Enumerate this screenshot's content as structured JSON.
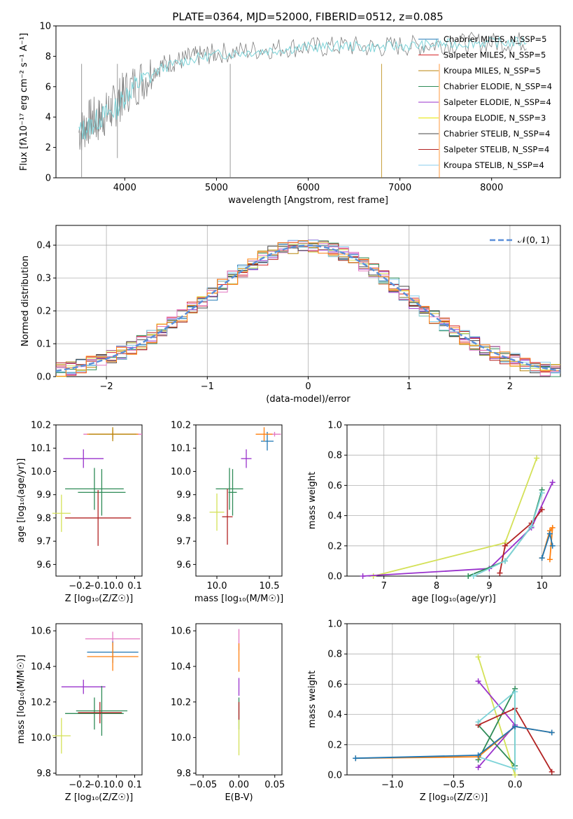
{
  "title": "PLATE=0364, MJD=52000, FIBERID=0512, z=0.085",
  "chart_data": [
    {
      "id": "spectrum",
      "type": "line",
      "xlabel": "wavelength [Angstrom, rest frame]",
      "ylabel": "Flux [fλ10⁻¹⁷ erg cm⁻² s⁻¹ A⁻¹]",
      "xlim": [
        3250,
        8750
      ],
      "ylim": [
        0,
        10
      ],
      "xticks": [
        4000,
        5000,
        6000,
        7000,
        8000
      ],
      "yticks": [
        0,
        2,
        4,
        6,
        8,
        10
      ],
      "grid": false,
      "legend_position": "upper-right",
      "legend": [
        {
          "label": "Chabrier MILES, N_SSP=5",
          "color": "#1f77b4"
        },
        {
          "label": "Salpeter MILES, N_SSP=5",
          "color": "#d62728"
        },
        {
          "label": "Kroupa MILES, N_SSP=5",
          "color": "#b8860b"
        },
        {
          "label": "Chabrier ELODIE, N_SSP=4",
          "color": "#2e8b57"
        },
        {
          "label": "Salpeter ELODIE, N_SSP=4",
          "color": "#9932cc"
        },
        {
          "label": "Kroupa ELODIE, N_SSP=3",
          "color": "#e6e600"
        },
        {
          "label": "Chabrier STELIB, N_SSP=4",
          "color": "#444444"
        },
        {
          "label": "Salpeter STELIB, N_SSP=4",
          "color": "#b22222"
        },
        {
          "label": "Kroupa STELIB, N_SSP=4",
          "color": "#87ceeb"
        }
      ],
      "data_series": {
        "name": "data",
        "color": "#808080",
        "x": [
          3500,
          3550,
          3600,
          3650,
          3700,
          3750,
          3800,
          3850,
          3900,
          3950,
          4000,
          4100,
          4200,
          4300,
          4400,
          4500,
          4600,
          4700,
          4800,
          4900,
          5000,
          5200,
          5400,
          5600,
          5800,
          6000,
          6200,
          6400,
          6600,
          6800,
          7000,
          7200,
          7400,
          7600,
          7800,
          8000,
          8200,
          8400
        ],
        "y": [
          3.0,
          3.2,
          3.6,
          3.9,
          3.7,
          4.1,
          4.2,
          4.5,
          4.8,
          5.2,
          5.6,
          6.1,
          6.5,
          7.0,
          7.4,
          7.6,
          7.7,
          7.9,
          8.0,
          8.1,
          8.2,
          8.3,
          8.4,
          8.5,
          8.6,
          8.6,
          8.6,
          8.7,
          8.6,
          8.6,
          8.7,
          8.7,
          8.8,
          8.8,
          8.9,
          8.9,
          8.9,
          9.0
        ]
      },
      "model_series": {
        "name": "model",
        "color": "#7dd3d8",
        "x": [
          3500,
          3600,
          3700,
          3800,
          3900,
          4000,
          4100,
          4200,
          4400,
          4600,
          4800,
          5000,
          5200,
          5400,
          5600,
          5800,
          6000,
          6200,
          6400,
          6600,
          6800,
          7000,
          7200,
          7400,
          7600,
          7800,
          8000,
          8200,
          8400
        ],
        "y": [
          3.0,
          3.3,
          3.8,
          4.2,
          4.5,
          5.4,
          6.0,
          6.4,
          7.2,
          7.6,
          7.9,
          8.1,
          8.2,
          8.3,
          8.4,
          8.5,
          8.6,
          8.6,
          8.7,
          8.6,
          8.6,
          8.7,
          8.7,
          8.8,
          8.8,
          8.9,
          8.9,
          8.9,
          9.0
        ]
      }
    },
    {
      "id": "residuals",
      "type": "line",
      "xlabel": "(data-model)/error",
      "ylabel": "Normed distribution",
      "xlim": [
        -2.5,
        2.5
      ],
      "ylim": [
        0,
        0.46
      ],
      "xticks": [
        -2,
        -1,
        0,
        1,
        2
      ],
      "yticks": [
        0.0,
        0.1,
        0.2,
        0.3,
        0.4
      ],
      "grid": true,
      "legend_position": "upper-right",
      "legend_label": "𝒩(0, 1)",
      "gaussian": {
        "mu": 0,
        "sigma": 1,
        "color": "#5b8fd9"
      },
      "step_colors": [
        "#1f77b4",
        "#d62728",
        "#b8860b",
        "#2e8b57",
        "#9932cc",
        "#d4e157",
        "#444444",
        "#b22222",
        "#87ceeb",
        "#e377c2",
        "#ff7f0e"
      ]
    },
    {
      "id": "age-vs-Z",
      "type": "scatter",
      "xlabel": "Z [log₁₀(Z/Z☉)]",
      "ylabel": "age  [log₁₀(age/yr)]",
      "xlim": [
        -0.33,
        0.14
      ],
      "ylim": [
        9.55,
        10.2
      ],
      "xticks": [
        -0.2,
        -0.1,
        0.0,
        0.1
      ],
      "ytick_labels": [
        "9.6",
        "9.7",
        "9.8",
        "9.9",
        "10.0",
        "10.1",
        "10.2"
      ],
      "points": [
        {
          "x": -0.02,
          "y": 10.16,
          "xerr": 0.16,
          "yerr": 0.01,
          "color": "#e377c2"
        },
        {
          "x": -0.02,
          "y": 10.16,
          "xerr": 0.14,
          "yerr": 0.02,
          "color": "#ff7f0e"
        },
        {
          "x": -0.02,
          "y": 10.16,
          "xerr": 0.13,
          "yerr": 0.03,
          "color": "#b8860b"
        },
        {
          "x": -0.18,
          "y": 10.055,
          "xerr": 0.11,
          "yerr": 0.04,
          "color": "#9932cc"
        },
        {
          "x": -0.12,
          "y": 9.925,
          "xerr": 0.16,
          "yerr": 0.09,
          "color": "#2e8b57"
        },
        {
          "x": -0.08,
          "y": 9.91,
          "xerr": 0.13,
          "yerr": 0.1,
          "color": "#2e8b57"
        },
        {
          "x": -0.1,
          "y": 9.8,
          "xerr": 0.18,
          "yerr": 0.12,
          "color": "#b22222"
        },
        {
          "x": -0.3,
          "y": 9.82,
          "xerr": 0.05,
          "yerr": 0.08,
          "color": "#d4e157"
        }
      ]
    },
    {
      "id": "age-vs-mass",
      "type": "scatter",
      "xlabel": "mass [log₁₀(M/M☉)]",
      "ylabel": "",
      "xlim": [
        9.8,
        10.62
      ],
      "ylim": [
        9.55,
        10.2
      ],
      "xticks": [
        10.0,
        10.5
      ],
      "ytick_labels": [
        "9.6",
        "9.7",
        "9.8",
        "9.9",
        "10.0",
        "10.1",
        "10.2"
      ],
      "points": [
        {
          "x": 10.55,
          "y": 10.16,
          "xerr": 0.06,
          "yerr": 0.01,
          "color": "#e377c2"
        },
        {
          "x": 10.48,
          "y": 10.13,
          "xerr": 0.06,
          "yerr": 0.04,
          "color": "#1f77b4"
        },
        {
          "x": 10.45,
          "y": 10.16,
          "xerr": 0.08,
          "yerr": 0.03,
          "color": "#ff7f0e"
        },
        {
          "x": 10.28,
          "y": 10.055,
          "xerr": 0.05,
          "yerr": 0.04,
          "color": "#9932cc"
        },
        {
          "x": 10.12,
          "y": 9.925,
          "xerr": 0.13,
          "yerr": 0.09,
          "color": "#2e8b57"
        },
        {
          "x": 10.15,
          "y": 9.91,
          "xerr": 0.04,
          "yerr": 0.1,
          "color": "#2e8b57"
        },
        {
          "x": 10.1,
          "y": 9.805,
          "xerr": 0.05,
          "yerr": 0.12,
          "color": "#b22222"
        },
        {
          "x": 10.0,
          "y": 9.825,
          "xerr": 0.07,
          "yerr": 0.08,
          "color": "#d4e157"
        }
      ]
    },
    {
      "id": "weight-vs-age",
      "type": "line",
      "xlabel": "age  [log₁₀(age/yr)]",
      "ylabel": "mass weight",
      "xlim": [
        6.3,
        10.35
      ],
      "ylim": [
        0,
        1.0
      ],
      "xticks": [
        7,
        8,
        9,
        10
      ],
      "ytick_labels": [
        "0.0",
        "0.2",
        "0.4",
        "0.6",
        "0.8",
        "1.0"
      ],
      "grid": true,
      "series": [
        {
          "color": "#d4e157",
          "x": [
            6.8,
            9.3,
            9.9
          ],
          "y": [
            0.0,
            0.22,
            0.78
          ]
        },
        {
          "color": "#9932cc",
          "x": [
            6.6,
            9.0,
            9.8,
            10.2
          ],
          "y": [
            0.0,
            0.05,
            0.32,
            0.62
          ]
        },
        {
          "color": "#2e8b57",
          "x": [
            8.6,
            9.3,
            9.8,
            10.0
          ],
          "y": [
            0.0,
            0.1,
            0.33,
            0.57
          ]
        },
        {
          "color": "#b22222",
          "x": [
            9.2,
            9.3,
            9.8,
            10.0
          ],
          "y": [
            0.02,
            0.2,
            0.35,
            0.44
          ]
        },
        {
          "color": "#7dd3d8",
          "x": [
            8.7,
            9.3,
            9.8,
            10.0
          ],
          "y": [
            0.0,
            0.1,
            0.33,
            0.55
          ]
        },
        {
          "color": "#ff7f0e",
          "x": [
            10.0,
            10.15,
            10.2,
            10.15
          ],
          "y": [
            0.12,
            0.3,
            0.32,
            0.11
          ]
        },
        {
          "color": "#1f77b4",
          "x": [
            10.0,
            10.15,
            10.2
          ],
          "y": [
            0.12,
            0.28,
            0.2
          ]
        }
      ]
    },
    {
      "id": "mass-vs-Z",
      "type": "scatter",
      "xlabel": "Z [log₁₀(Z/Z☉)]",
      "ylabel": "mass [log₁₀(M/M☉)]",
      "xlim": [
        -0.33,
        0.14
      ],
      "ylim": [
        9.79,
        10.64
      ],
      "xticks": [
        -0.2,
        -0.1,
        0.0,
        0.1
      ],
      "ytick_labels": [
        "9.8",
        "10.0",
        "10.2",
        "10.4",
        "10.6"
      ],
      "points": [
        {
          "x": -0.02,
          "y": 10.555,
          "xerr": 0.15,
          "yerr": 0.04,
          "color": "#e377c2"
        },
        {
          "x": -0.02,
          "y": 10.48,
          "xerr": 0.14,
          "yerr": 0.06,
          "color": "#1f77b4"
        },
        {
          "x": -0.02,
          "y": 10.455,
          "xerr": 0.14,
          "yerr": 0.08,
          "color": "#ff7f0e"
        },
        {
          "x": -0.18,
          "y": 10.285,
          "xerr": 0.12,
          "yerr": 0.04,
          "color": "#9932cc"
        },
        {
          "x": -0.12,
          "y": 10.135,
          "xerr": 0.16,
          "yerr": 0.09,
          "color": "#2e8b57"
        },
        {
          "x": -0.08,
          "y": 10.15,
          "xerr": 0.14,
          "yerr": 0.14,
          "color": "#2e8b57"
        },
        {
          "x": -0.09,
          "y": 10.14,
          "xerr": 0.12,
          "yerr": 0.06,
          "color": "#b22222"
        },
        {
          "x": -0.3,
          "y": 10.01,
          "xerr": 0.05,
          "yerr": 0.1,
          "color": "#d4e157"
        }
      ]
    },
    {
      "id": "mass-vs-EBV",
      "type": "scatter",
      "xlabel": "E(B-V)",
      "ylabel": "",
      "xlim": [
        -0.06,
        0.06
      ],
      "ylim": [
        9.79,
        10.64
      ],
      "xticks": [
        -0.05,
        0.0,
        0.05
      ],
      "ytick_labels": [
        "9.8",
        "10.0",
        "10.2",
        "10.4",
        "10.6"
      ],
      "points": [
        {
          "x": 0.0,
          "y": 10.55,
          "xerr": 0,
          "yerr": 0.06,
          "color": "#e377c2"
        },
        {
          "x": 0.0,
          "y": 10.45,
          "xerr": 0,
          "yerr": 0.08,
          "color": "#ff7f0e"
        },
        {
          "x": 0.0,
          "y": 10.285,
          "xerr": 0,
          "yerr": 0.05,
          "color": "#9932cc"
        },
        {
          "x": 0.0,
          "y": 10.135,
          "xerr": 0,
          "yerr": 0.09,
          "color": "#2e8b57"
        },
        {
          "x": 0.0,
          "y": 10.15,
          "xerr": 0,
          "yerr": 0.05,
          "color": "#b22222"
        },
        {
          "x": 0.0,
          "y": 10.0,
          "xerr": 0,
          "yerr": 0.1,
          "color": "#d4e157"
        }
      ]
    },
    {
      "id": "weight-vs-Z",
      "type": "line",
      "xlabel": "Z [log₁₀(Z/Z☉)]",
      "ylabel": "mass weight",
      "xlim": [
        -1.37,
        0.37
      ],
      "ylim": [
        0,
        1.0
      ],
      "xticks": [
        -1.0,
        -0.5,
        0.0
      ],
      "ytick_labels": [
        "0.0",
        "0.2",
        "0.4",
        "0.6",
        "0.8",
        "1.0"
      ],
      "grid": true,
      "series": [
        {
          "color": "#d4e157",
          "x": [
            -0.3,
            0.0
          ],
          "y": [
            0.78,
            0.0
          ]
        },
        {
          "color": "#9932cc",
          "x": [
            -0.3,
            0.0,
            -0.3
          ],
          "y": [
            0.62,
            0.33,
            0.05
          ]
        },
        {
          "color": "#2e8b57",
          "x": [
            -0.3,
            0.0,
            0.0,
            -0.3
          ],
          "y": [
            0.33,
            0.06,
            0.57,
            0.1
          ]
        },
        {
          "color": "#b22222",
          "x": [
            -0.3,
            0.0,
            0.3
          ],
          "y": [
            0.33,
            0.44,
            0.02
          ]
        },
        {
          "color": "#7dd3d8",
          "x": [
            -0.3,
            0.0,
            0.0,
            -0.3
          ],
          "y": [
            0.35,
            0.55,
            0.04,
            0.12
          ]
        },
        {
          "color": "#ff7f0e",
          "x": [
            -1.3,
            -0.3,
            0.0,
            0.3
          ],
          "y": [
            0.11,
            0.12,
            0.32,
            0.28
          ]
        },
        {
          "color": "#1f77b4",
          "x": [
            -1.3,
            -0.3,
            0.0,
            0.3
          ],
          "y": [
            0.11,
            0.13,
            0.32,
            0.28
          ]
        }
      ]
    }
  ]
}
